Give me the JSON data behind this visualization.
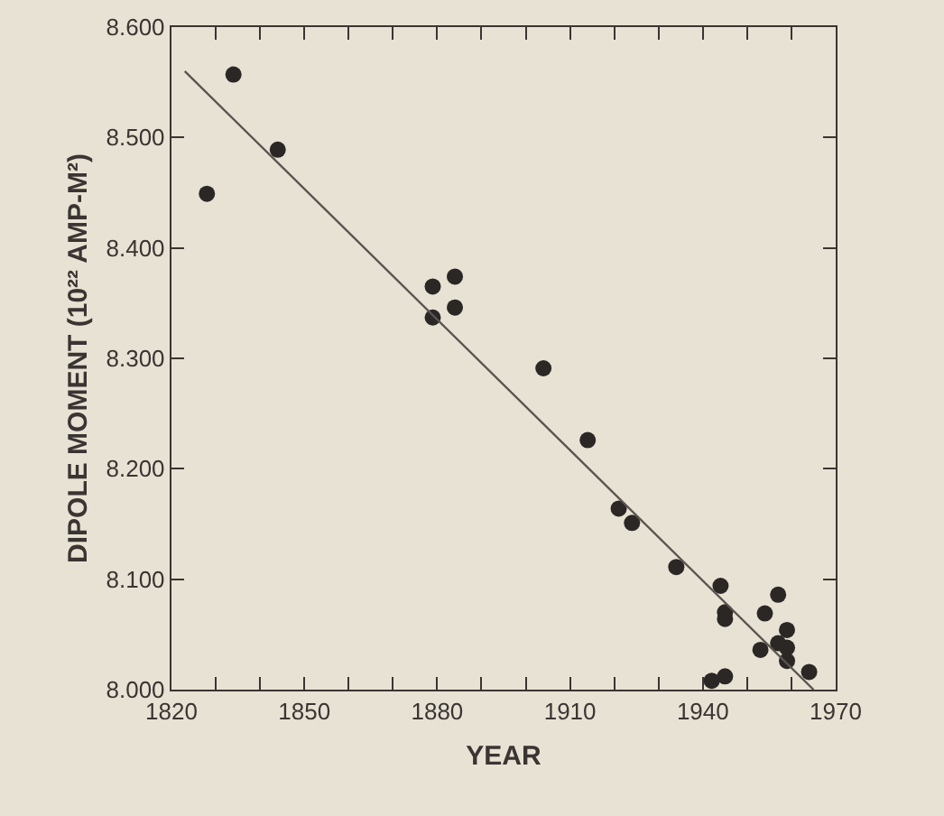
{
  "chart_data": {
    "type": "scatter",
    "xlabel": "YEAR",
    "ylabel": "DIPOLE MOMENT (10²² AMP-M²)",
    "xlim": [
      1820,
      1970
    ],
    "ylim": [
      8.0,
      8.6
    ],
    "xticks": [
      1820,
      {
        "value": 1830,
        "label": null
      },
      {
        "value": 1840,
        "label": null
      },
      1850,
      {
        "value": 1860,
        "label": null
      },
      {
        "value": 1870,
        "label": null
      },
      1880,
      {
        "value": 1890,
        "label": null
      },
      {
        "value": 1900,
        "label": null
      },
      1910,
      {
        "value": 1920,
        "label": null
      },
      {
        "value": 1930,
        "label": null
      },
      1940,
      {
        "value": 1950,
        "label": null
      },
      {
        "value": 1960,
        "label": null
      },
      1970
    ],
    "yticks": [
      {
        "value": 8.0,
        "label": "8.000"
      },
      {
        "value": 8.1,
        "label": "8.100"
      },
      {
        "value": 8.2,
        "label": "8.200"
      },
      {
        "value": 8.3,
        "label": "8.300"
      },
      {
        "value": 8.4,
        "label": "8.400"
      },
      {
        "value": 8.5,
        "label": "8.500"
      },
      {
        "value": 8.6,
        "label": "8.600"
      }
    ],
    "marker": "circle",
    "series": [
      {
        "color": "#2b2724",
        "x": [
          1828,
          1834,
          1844,
          1879,
          1879,
          1884,
          1884,
          1904,
          1914,
          1921,
          1924,
          1934,
          1944,
          1945,
          1945,
          1942,
          1945,
          1957,
          1954,
          1959,
          1953,
          1957,
          1959,
          1959,
          1964
        ],
        "values": [
          8.449,
          8.557,
          8.489,
          8.365,
          8.337,
          8.374,
          8.346,
          8.291,
          8.226,
          8.164,
          8.151,
          8.111,
          8.094,
          8.07,
          8.064,
          8.008,
          8.012,
          8.086,
          8.069,
          8.054,
          8.036,
          8.042,
          8.038,
          8.026,
          8.016
        ]
      },
      {
        "type": "line",
        "color": "#5a5450",
        "line_style": "solid",
        "marker": "none",
        "x": [
          1823,
          1965
        ],
        "values": [
          8.56,
          8.0
        ]
      }
    ]
  }
}
